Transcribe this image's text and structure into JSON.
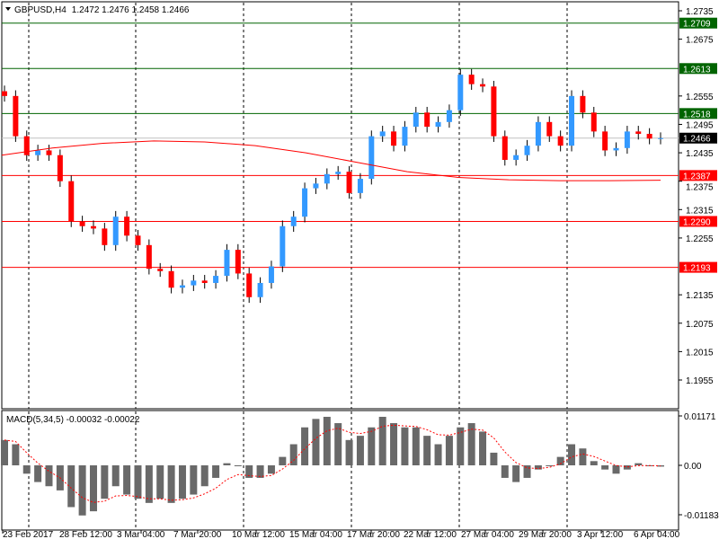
{
  "header": {
    "symbol_label": "GBPUSD,H4",
    "ohlc": "1.2472 1.2476 1.2458 1.2466"
  },
  "macd_label": "MACD(5,34,5) -0.00032 -0.00022",
  "chart_data": [
    {
      "type": "candlestick",
      "symbol": "GBPUSD",
      "timeframe": "H4",
      "ylim": [
        1.1955,
        1.2735
      ],
      "y_ticks": [
        "1.2735",
        "1.2675",
        "1.2555",
        "1.2495",
        "1.2435",
        "1.2375",
        "1.2315",
        "1.2255",
        "1.2135",
        "1.2075",
        "1.2015",
        "1.1955"
      ],
      "x_ticks": [
        "23 Feb 2017",
        "28 Feb 12:00",
        "3 Mar 04:00",
        "7 Mar 20:00",
        "10 Mar 12:00",
        "15 Mar 04:00",
        "17 Mar 20:00",
        "22 Mar 12:00",
        "27 Mar 04:00",
        "29 Mar 20:00",
        "3 Apr 12:00",
        "6 Apr 04:00"
      ],
      "close": [
        1.2555,
        1.247,
        1.243,
        1.244,
        1.243,
        1.2375,
        1.229,
        1.228,
        1.2275,
        1.224,
        1.23,
        1.226,
        1.224,
        1.219,
        1.2185,
        1.215,
        1.2155,
        1.2165,
        1.216,
        1.2175,
        1.223,
        1.218,
        1.213,
        1.216,
        1.2195,
        1.228,
        1.23,
        1.236,
        1.237,
        1.239,
        1.2395,
        1.235,
        1.238,
        1.247,
        1.248,
        1.245,
        1.249,
        1.252,
        1.249,
        1.25,
        1.2525,
        1.26,
        1.258,
        1.2575,
        1.247,
        1.242,
        1.243,
        1.245,
        1.25,
        1.247,
        1.245,
        1.2555,
        1.252,
        1.248,
        1.244,
        1.2445,
        1.248,
        1.2475,
        1.2465,
        1.2466
      ],
      "moving_average": [
        1.243,
        1.2445,
        1.2455,
        1.246,
        1.2458,
        1.245,
        1.2435,
        1.2415,
        1.2395,
        1.2383,
        1.2378,
        1.2376,
        1.2376,
        1.2377
      ],
      "levels": [
        {
          "value": "1.2709",
          "color": "#006400"
        },
        {
          "value": "1.2613",
          "color": "#006400"
        },
        {
          "value": "1.2518",
          "color": "#006400"
        },
        {
          "value": "1.2466",
          "color": "#000000",
          "current": true
        },
        {
          "value": "1.2387",
          "color": "#ff0000"
        },
        {
          "value": "1.2290",
          "color": "#ff0000"
        },
        {
          "value": "1.2193",
          "color": "#ff0000"
        }
      ],
      "colors": {
        "bull": "#3399ff",
        "bear": "#ff0000",
        "ma": "#ff0000"
      }
    },
    {
      "type": "bar",
      "name": "MACD(5,34,5)",
      "ylim": [
        -0.01183,
        0.01171
      ],
      "y_ticks": [
        "0.01171",
        "0.00",
        "-0.01183"
      ],
      "histogram": [
        0.006,
        0.005,
        -0.002,
        -0.004,
        -0.005,
        -0.006,
        -0.01,
        -0.012,
        -0.011,
        -0.008,
        -0.005,
        -0.007,
        -0.008,
        -0.009,
        -0.008,
        -0.009,
        -0.008,
        -0.007,
        -0.005,
        -0.003,
        0.0005,
        0,
        -0.003,
        -0.003,
        -0.002,
        0.002,
        0.005,
        0.009,
        0.011,
        0.0115,
        0.01,
        0.006,
        0.007,
        0.009,
        0.0115,
        0.01,
        0.009,
        0.009,
        0.007,
        0.005,
        0.007,
        0.009,
        0.01,
        0.008,
        0.003,
        -0.003,
        -0.004,
        -0.003,
        -0.001,
        0,
        0.002,
        0.005,
        0.004,
        0.001,
        -0.001,
        -0.002,
        -0.001,
        0.0005,
        0,
        -0.0003
      ],
      "colors": {
        "histogram": "#696969",
        "signal": "#ff0000"
      }
    }
  ]
}
